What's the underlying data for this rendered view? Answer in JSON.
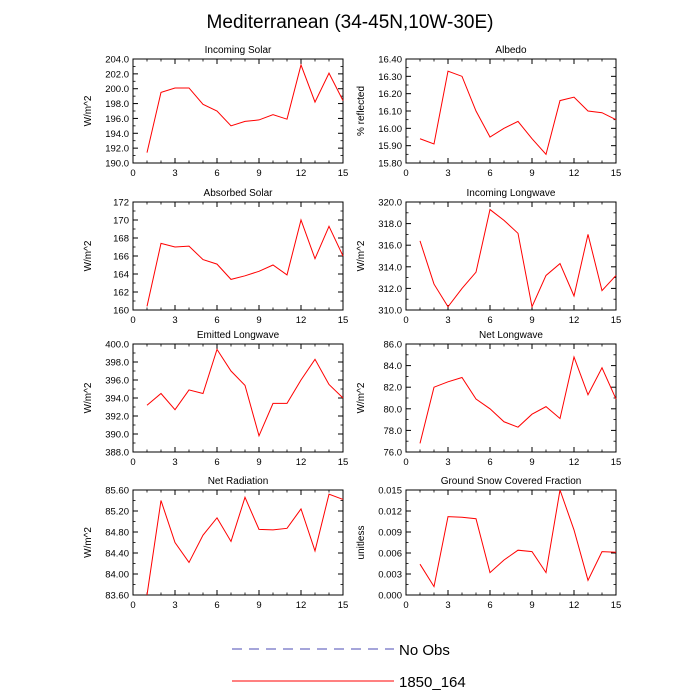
{
  "figure": {
    "title": "Mediterranean (34-45N,10W-30E)",
    "legend": [
      {
        "label": "No Obs",
        "color": "#4b4bb4",
        "style": "dashed"
      },
      {
        "label": "1850_164",
        "color": "#ff0000",
        "style": "solid"
      }
    ]
  },
  "chart_data": [
    {
      "type": "line",
      "title": "Incoming Solar",
      "ylabel": "W/m^2",
      "xlim": [
        0,
        15
      ],
      "xticks": [
        0,
        3,
        6,
        9,
        12,
        15
      ],
      "ylim": [
        190,
        204
      ],
      "yticks": [
        190.0,
        192.0,
        194.0,
        196.0,
        198.0,
        200.0,
        202.0,
        204.0
      ],
      "ytick_labels": [
        "190.0",
        "192.0",
        "194.0",
        "196.0",
        "198.0",
        "200.0",
        "202.0",
        "204.0"
      ],
      "series": [
        {
          "name": "1850_164",
          "color": "#ff0000",
          "x": [
            1,
            2,
            3,
            4,
            5,
            6,
            7,
            8,
            9,
            10,
            11,
            12,
            13,
            14,
            15
          ],
          "y": [
            191.4,
            199.5,
            200.1,
            200.1,
            197.9,
            197.0,
            195.0,
            195.6,
            195.8,
            196.5,
            195.9,
            203.2,
            198.2,
            202.1,
            198.4
          ]
        }
      ]
    },
    {
      "type": "line",
      "title": "Albedo",
      "ylabel": "% reflected",
      "xlim": [
        0,
        15
      ],
      "xticks": [
        0,
        3,
        6,
        9,
        12,
        15
      ],
      "ylim": [
        15.8,
        16.4
      ],
      "yticks": [
        15.8,
        15.9,
        16.0,
        16.1,
        16.2,
        16.3,
        16.4
      ],
      "ytick_labels": [
        "15.80",
        "15.90",
        "16.00",
        "16.10",
        "16.20",
        "16.30",
        "16.40"
      ],
      "series": [
        {
          "name": "1850_164",
          "color": "#ff0000",
          "x": [
            1,
            2,
            3,
            4,
            5,
            6,
            7,
            8,
            9,
            10,
            11,
            12,
            13,
            14,
            15
          ],
          "y": [
            15.94,
            15.91,
            16.33,
            16.3,
            16.1,
            15.95,
            16.0,
            16.04,
            15.94,
            15.85,
            16.16,
            16.18,
            16.1,
            16.09,
            16.05
          ]
        }
      ]
    },
    {
      "type": "line",
      "title": "Absorbed Solar",
      "ylabel": "W/m^2",
      "xlim": [
        0,
        15
      ],
      "xticks": [
        0,
        3,
        6,
        9,
        12,
        15
      ],
      "ylim": [
        160,
        172
      ],
      "yticks": [
        160,
        162,
        164,
        166,
        168,
        170,
        172
      ],
      "ytick_labels": [
        "160",
        "162",
        "164",
        "166",
        "168",
        "170",
        "172"
      ],
      "series": [
        {
          "name": "1850_164",
          "color": "#ff0000",
          "x": [
            1,
            2,
            3,
            4,
            5,
            6,
            7,
            8,
            9,
            10,
            11,
            12,
            13,
            14,
            15
          ],
          "y": [
            160.4,
            167.4,
            167.0,
            167.1,
            165.6,
            165.1,
            163.4,
            163.8,
            164.3,
            165.0,
            163.9,
            170.0,
            165.7,
            169.3,
            166.0
          ]
        }
      ]
    },
    {
      "type": "line",
      "title": "Incoming Longwave",
      "ylabel": "W/m^2",
      "xlim": [
        0,
        15
      ],
      "xticks": [
        0,
        3,
        6,
        9,
        12,
        15
      ],
      "ylim": [
        310,
        320
      ],
      "yticks": [
        310,
        312,
        314,
        316,
        318,
        320
      ],
      "ytick_labels": [
        "310.0",
        "312.0",
        "314.0",
        "316.0",
        "318.0",
        "320.0"
      ],
      "series": [
        {
          "name": "1850_164",
          "color": "#ff0000",
          "x": [
            1,
            2,
            3,
            4,
            5,
            6,
            7,
            8,
            9,
            10,
            11,
            12,
            13,
            14,
            15
          ],
          "y": [
            316.4,
            312.4,
            310.3,
            312.0,
            313.5,
            319.3,
            318.3,
            317.1,
            310.3,
            313.2,
            314.3,
            311.3,
            317.0,
            311.8,
            313.2
          ]
        }
      ]
    },
    {
      "type": "line",
      "title": "Emitted Longwave",
      "ylabel": "W/m^2",
      "xlim": [
        0,
        15
      ],
      "xticks": [
        0,
        3,
        6,
        9,
        12,
        15
      ],
      "ylim": [
        388,
        400
      ],
      "yticks": [
        388,
        390,
        392,
        394,
        396,
        398,
        400
      ],
      "ytick_labels": [
        "388.0",
        "390.0",
        "392.0",
        "394.0",
        "396.0",
        "398.0",
        "400.0"
      ],
      "series": [
        {
          "name": "1850_164",
          "color": "#ff0000",
          "x": [
            1,
            2,
            3,
            4,
            5,
            6,
            7,
            8,
            9,
            10,
            11,
            12,
            13,
            14,
            15
          ],
          "y": [
            393.2,
            394.5,
            392.7,
            394.9,
            394.5,
            399.4,
            397.0,
            395.4,
            389.8,
            393.4,
            393.4,
            396.0,
            398.3,
            395.5,
            394.0
          ]
        }
      ]
    },
    {
      "type": "line",
      "title": "Net Longwave",
      "ylabel": "W/m^2",
      "xlim": [
        0,
        15
      ],
      "xticks": [
        0,
        3,
        6,
        9,
        12,
        15
      ],
      "ylim": [
        76,
        86
      ],
      "yticks": [
        76,
        78,
        80,
        82,
        84,
        86
      ],
      "ytick_labels": [
        "76.0",
        "78.0",
        "80.0",
        "82.0",
        "84.0",
        "86.0"
      ],
      "series": [
        {
          "name": "1850_164",
          "color": "#ff0000",
          "x": [
            1,
            2,
            3,
            4,
            5,
            6,
            7,
            8,
            9,
            10,
            11,
            12,
            13,
            14,
            15
          ],
          "y": [
            76.8,
            82.0,
            82.5,
            82.9,
            80.9,
            80.0,
            78.8,
            78.3,
            79.5,
            80.2,
            79.1,
            84.8,
            81.3,
            83.8,
            80.9
          ]
        }
      ]
    },
    {
      "type": "line",
      "title": "Net Radiation",
      "ylabel": "W/m^2",
      "xlim": [
        0,
        15
      ],
      "xticks": [
        0,
        3,
        6,
        9,
        12,
        15
      ],
      "ylim": [
        83.6,
        85.6
      ],
      "yticks": [
        83.6,
        84.0,
        84.4,
        84.8,
        85.2,
        85.6
      ],
      "ytick_labels": [
        "83.60",
        "84.00",
        "84.40",
        "84.80",
        "85.20",
        "85.60"
      ],
      "series": [
        {
          "name": "1850_164",
          "color": "#ff0000",
          "x": [
            1,
            2,
            3,
            4,
            5,
            6,
            7,
            8,
            9,
            10,
            11,
            12,
            13,
            14,
            15
          ],
          "y": [
            83.6,
            85.4,
            84.6,
            84.22,
            84.74,
            85.07,
            84.62,
            85.46,
            84.85,
            84.84,
            84.87,
            85.24,
            84.44,
            85.52,
            85.42
          ]
        }
      ]
    },
    {
      "type": "line",
      "title": "Ground Snow Covered Fraction",
      "ylabel": "unitless",
      "xlim": [
        0,
        15
      ],
      "xticks": [
        0,
        3,
        6,
        9,
        12,
        15
      ],
      "ylim": [
        0,
        0.015
      ],
      "yticks": [
        0,
        0.003,
        0.006,
        0.009,
        0.012,
        0.015
      ],
      "ytick_labels": [
        "0.000",
        "0.003",
        "0.006",
        "0.009",
        "0.012",
        "0.015"
      ],
      "series": [
        {
          "name": "1850_164",
          "color": "#ff0000",
          "x": [
            1,
            2,
            3,
            4,
            5,
            6,
            7,
            8,
            9,
            10,
            11,
            12,
            13,
            14,
            15
          ],
          "y": [
            0.0044,
            0.0012,
            0.0112,
            0.0111,
            0.0109,
            0.0032,
            0.005,
            0.0064,
            0.0062,
            0.0032,
            0.015,
            0.0093,
            0.0021,
            0.0062,
            0.0061
          ]
        }
      ]
    }
  ]
}
